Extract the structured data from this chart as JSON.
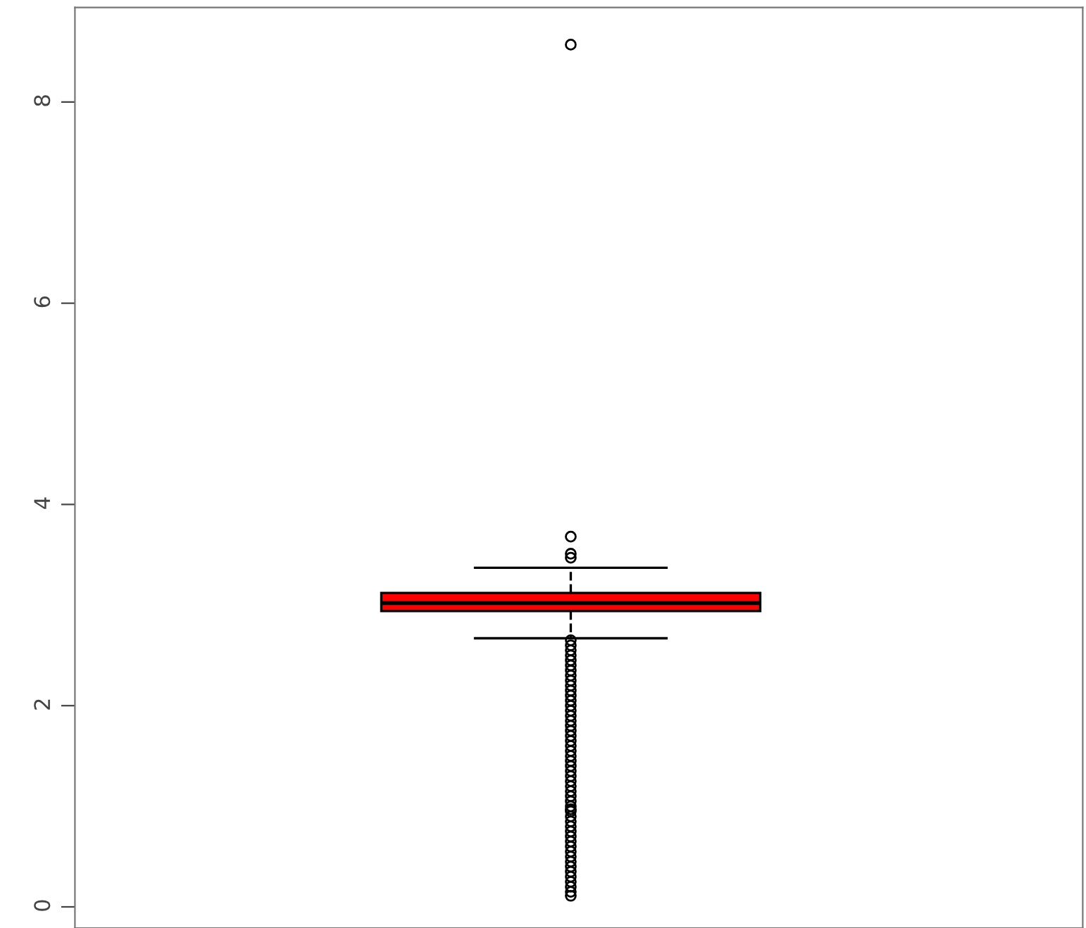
{
  "chart_data": {
    "type": "box",
    "categories": [
      null
    ],
    "color": "#ff0000",
    "boxes": [
      {
        "low": 2.67,
        "q1": 2.94,
        "median": 3.02,
        "q3": 3.12,
        "high": 3.37,
        "outliers": [
          8.57,
          3.68,
          3.51,
          3.47,
          2.65,
          2.6,
          2.55,
          2.5,
          2.45,
          2.4,
          2.35,
          2.3,
          2.25,
          2.2,
          2.15,
          2.1,
          2.05,
          2.0,
          1.95,
          1.9,
          1.85,
          1.8,
          1.75,
          1.7,
          1.65,
          1.6,
          1.55,
          1.5,
          1.45,
          1.4,
          1.35,
          1.3,
          1.25,
          1.2,
          1.15,
          1.1,
          1.05,
          1.0,
          0.97,
          0.95,
          0.9,
          0.85,
          0.8,
          0.75,
          0.7,
          0.65,
          0.6,
          0.55,
          0.5,
          0.45,
          0.4,
          0.35,
          0.3,
          0.25,
          0.2,
          0.15,
          0.11
        ]
      }
    ],
    "ylim": [
      -0.21,
      8.94
    ],
    "yticks": [
      0,
      2,
      4,
      6,
      8
    ],
    "grid": false,
    "tick_labels": "y",
    "marker": "circle"
  }
}
